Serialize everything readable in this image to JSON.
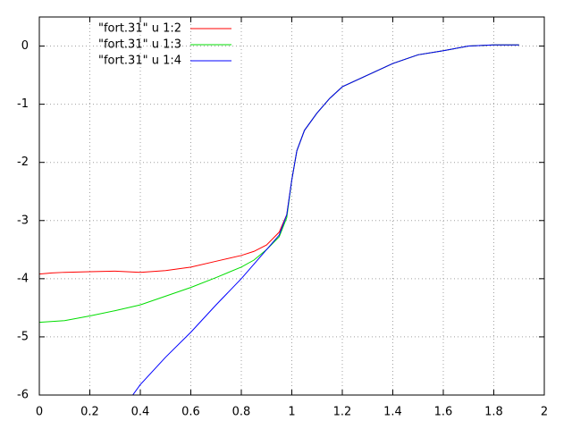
{
  "chart_data": {
    "type": "line",
    "xlim": [
      0,
      2
    ],
    "ylim": [
      -6,
      0.5
    ],
    "xticks": [
      0,
      0.2,
      0.4,
      0.6,
      0.8,
      1,
      1.2,
      1.4,
      1.6,
      1.8,
      2
    ],
    "yticks": [
      -6,
      -5,
      -4,
      -3,
      -2,
      -1,
      0
    ],
    "grid": true,
    "legend": "top-left",
    "series": [
      {
        "name": "\"fort.31\" u 1:2",
        "color": "#ff0000",
        "x": [
          0,
          0.05,
          0.1,
          0.2,
          0.3,
          0.4,
          0.5,
          0.6,
          0.7,
          0.8,
          0.85,
          0.9,
          0.95,
          0.98,
          1.0,
          1.02,
          1.05,
          1.1,
          1.15,
          1.2,
          1.3,
          1.4,
          1.5,
          1.6,
          1.7,
          1.8,
          1.9
        ],
        "values": [
          -3.92,
          -3.9,
          -3.89,
          -3.88,
          -3.87,
          -3.89,
          -3.86,
          -3.8,
          -3.7,
          -3.6,
          -3.53,
          -3.42,
          -3.2,
          -2.9,
          -2.3,
          -1.8,
          -1.45,
          -1.15,
          -0.9,
          -0.7,
          -0.5,
          -0.3,
          -0.15,
          -0.08,
          0.0,
          0.02,
          0.02
        ]
      },
      {
        "name": "\"fort.31\" u 1:3",
        "color": "#00dd00",
        "x": [
          0,
          0.1,
          0.2,
          0.3,
          0.4,
          0.5,
          0.6,
          0.7,
          0.8,
          0.85,
          0.9,
          0.95,
          0.98,
          1.0,
          1.02,
          1.05,
          1.1,
          1.15,
          1.2,
          1.3,
          1.4,
          1.5,
          1.6,
          1.7,
          1.8,
          1.9
        ],
        "values": [
          -4.75,
          -4.72,
          -4.64,
          -4.55,
          -4.45,
          -4.3,
          -4.15,
          -3.98,
          -3.8,
          -3.68,
          -3.5,
          -3.28,
          -2.95,
          -2.3,
          -1.8,
          -1.45,
          -1.15,
          -0.9,
          -0.7,
          -0.5,
          -0.3,
          -0.15,
          -0.08,
          0.0,
          0.02,
          0.02
        ]
      },
      {
        "name": "\"fort.31\" u 1:4",
        "color": "#0000ff",
        "x": [
          0.37,
          0.4,
          0.5,
          0.6,
          0.7,
          0.8,
          0.85,
          0.9,
          0.95,
          0.98,
          1.0,
          1.02,
          1.05,
          1.1,
          1.15,
          1.2,
          1.3,
          1.4,
          1.5,
          1.6,
          1.7,
          1.8,
          1.9
        ],
        "values": [
          -6,
          -5.82,
          -5.35,
          -4.92,
          -4.45,
          -4.0,
          -3.75,
          -3.5,
          -3.25,
          -2.9,
          -2.3,
          -1.8,
          -1.45,
          -1.15,
          -0.9,
          -0.7,
          -0.5,
          -0.3,
          -0.15,
          -0.08,
          0.0,
          0.02,
          0.02
        ]
      }
    ]
  }
}
